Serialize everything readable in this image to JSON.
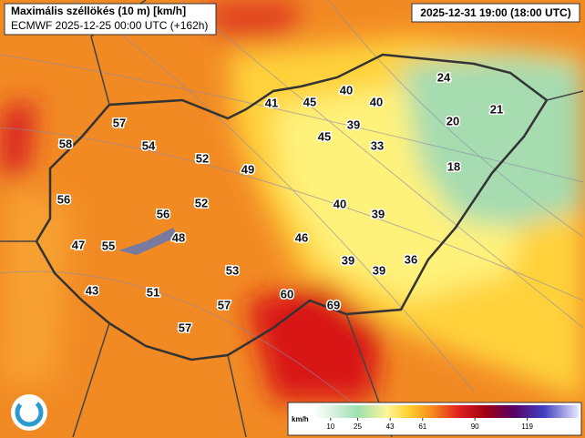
{
  "header": {
    "title": "Maximális széllökés (10 m) [km/h]",
    "model_run": "ECMWF 2025-12-25 00:00 UTC (+162h)",
    "valid_time": "2025-12-31 19:00 (18:00 UTC)"
  },
  "stations": [
    24,
    21,
    20,
    18,
    40,
    40,
    45,
    41,
    39,
    45,
    33,
    57,
    58,
    54,
    52,
    49,
    56,
    52,
    56,
    40,
    39,
    47,
    55,
    48,
    46,
    39,
    39,
    36,
    53,
    43,
    51,
    60,
    69,
    57,
    57
  ],
  "legend": {
    "unit": "km/h",
    "ticks": [
      10,
      25,
      43,
      61,
      90,
      119
    ]
  }
}
